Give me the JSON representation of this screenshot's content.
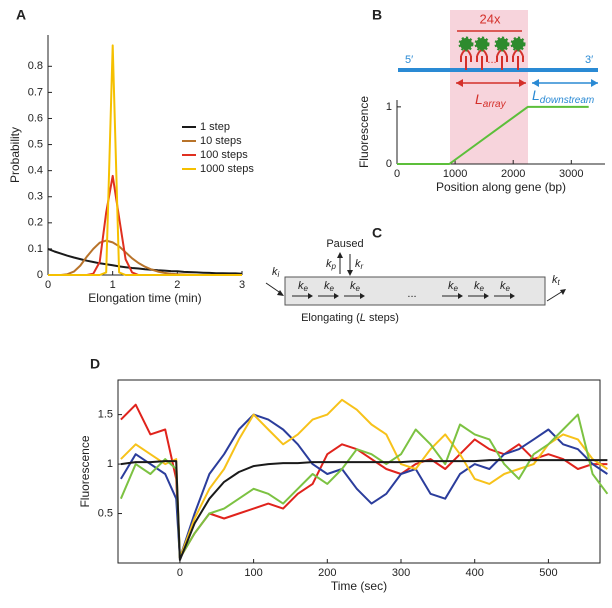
{
  "panel_labels": [
    "A",
    "B",
    "C",
    "D"
  ],
  "chart_data": [
    {
      "type": "line",
      "xlabel": "Elongation time (min)",
      "ylabel": "Probability",
      "x": [
        0,
        0.1,
        0.2,
        0.3,
        0.4,
        0.5,
        0.6,
        0.7,
        0.8,
        0.9,
        1,
        1.1,
        1.2,
        1.3,
        1.4,
        1.5,
        1.6,
        1.7,
        1.8,
        1.9,
        2,
        2.1,
        2.2,
        2.3,
        2.4,
        2.5,
        2.6,
        2.7,
        2.8,
        2.9,
        3
      ],
      "series": [
        {
          "name": "1 step",
          "color": "#1a1a1a",
          "values": [
            0.1,
            0.09,
            0.082,
            0.074,
            0.067,
            0.061,
            0.055,
            0.05,
            0.045,
            0.041,
            0.037,
            0.033,
            0.03,
            0.027,
            0.025,
            0.022,
            0.02,
            0.018,
            0.017,
            0.015,
            0.014,
            0.012,
            0.011,
            0.01,
            0.009,
            0.008,
            0.007,
            0.007,
            0.006,
            0.006,
            0.005
          ]
        },
        {
          "name": "10 steps",
          "color": "#b8732a",
          "values": [
            0,
            0,
            0,
            0.003,
            0.013,
            0.036,
            0.07,
            0.1,
            0.124,
            0.132,
            0.125,
            0.11,
            0.087,
            0.064,
            0.046,
            0.032,
            0.021,
            0.013,
            0.008,
            0.005,
            0.003,
            0.002,
            0.001,
            0,
            0,
            0,
            0,
            0,
            0,
            0,
            0
          ]
        },
        {
          "name": "100 steps",
          "color": "#e03020",
          "values": [
            0,
            0,
            0,
            0,
            0,
            0,
            0,
            0.005,
            0.05,
            0.24,
            0.38,
            0.22,
            0.06,
            0.01,
            0,
            0,
            0,
            0,
            0,
            0,
            0,
            0,
            0,
            0,
            0,
            0,
            0,
            0,
            0,
            0,
            0
          ]
        },
        {
          "name": "1000 steps",
          "color": "#f5c000",
          "values": [
            0,
            0,
            0,
            0,
            0,
            0,
            0,
            0,
            0,
            0.01,
            0.88,
            0.01,
            0,
            0,
            0,
            0,
            0,
            0,
            0,
            0,
            0,
            0,
            0,
            0,
            0,
            0,
            0,
            0,
            0,
            0,
            0
          ]
        }
      ],
      "xlim": [
        0,
        3
      ],
      "ylim": [
        0,
        0.92
      ],
      "xticks": [
        0,
        1,
        2,
        3
      ],
      "yticks": [
        0,
        0.1,
        0.2,
        0.3,
        0.4,
        0.5,
        0.6,
        0.7,
        0.8
      ],
      "legend": "center right",
      "box": false
    },
    {
      "type": "line",
      "xlabel": "Position along gene (bp)",
      "ylabel": "Fluorescence",
      "x": [
        0,
        900,
        2250,
        3300
      ],
      "series": [
        {
          "color": "#5cbf3a",
          "values": [
            0,
            0,
            1,
            1
          ]
        }
      ],
      "xlim": [
        0,
        3580
      ],
      "ylim": [
        0,
        1.12
      ],
      "xticks": [
        0,
        1000,
        2000,
        3000
      ],
      "yticks": [
        0,
        1
      ],
      "box": false
    },
    {
      "type": "line",
      "xlabel": "Time (sec)",
      "ylabel": "Fluorescence",
      "x": [
        -80,
        -60,
        -40,
        -20,
        -5,
        0,
        20,
        40,
        60,
        80,
        100,
        120,
        140,
        160,
        180,
        200,
        220,
        240,
        260,
        280,
        300,
        320,
        340,
        360,
        380,
        400,
        420,
        440,
        460,
        480,
        500,
        520,
        540,
        560,
        580
      ],
      "series": [
        {
          "color": "#e0231c",
          "values": [
            1.45,
            1.6,
            1.3,
            1.35,
            0.85,
            0.05,
            0.3,
            0.5,
            0.45,
            0.5,
            0.55,
            0.6,
            0.55,
            0.7,
            0.8,
            1.1,
            1.2,
            1.15,
            1.05,
            0.95,
            0.9,
            1.0,
            1.05,
            0.95,
            1.1,
            1.25,
            1.15,
            1.1,
            1.2,
            1.05,
            1.1,
            1.05,
            0.95,
            1.0,
            1.0
          ]
        },
        {
          "color": "#2b3d9c",
          "values": [
            0.85,
            1.1,
            1.0,
            0.9,
            0.65,
            0.05,
            0.5,
            0.9,
            1.1,
            1.35,
            1.5,
            1.45,
            1.35,
            1.2,
            1.0,
            0.9,
            0.95,
            0.75,
            0.6,
            0.7,
            0.9,
            0.95,
            0.7,
            0.65,
            0.9,
            1.0,
            0.95,
            1.1,
            1.15,
            1.25,
            1.35,
            1.2,
            1.15,
            1.0,
            0.9
          ]
        },
        {
          "color": "#f7c21a",
          "values": [
            1.05,
            1.2,
            1.1,
            1.0,
            1.05,
            0.05,
            0.45,
            0.75,
            0.95,
            1.25,
            1.5,
            1.35,
            1.2,
            1.3,
            1.45,
            1.5,
            1.65,
            1.55,
            1.4,
            1.3,
            1.0,
            0.95,
            1.15,
            1.3,
            1.1,
            0.85,
            0.8,
            0.9,
            0.95,
            1.0,
            1.2,
            1.3,
            1.25,
            1.05,
            0.95
          ]
        },
        {
          "color": "#7cc242",
          "values": [
            0.65,
            1.0,
            0.9,
            1.05,
            0.95,
            0.05,
            0.3,
            0.5,
            0.55,
            0.65,
            0.75,
            0.7,
            0.6,
            0.75,
            0.9,
            0.8,
            0.95,
            1.15,
            1.1,
            1.0,
            1.1,
            1.35,
            1.2,
            1.0,
            1.4,
            1.3,
            1.25,
            1.0,
            0.85,
            1.1,
            1.2,
            1.35,
            1.5,
            0.9,
            0.7
          ]
        },
        {
          "color": "#1a1a1a",
          "values": [
            1.0,
            1.02,
            1.02,
            1.03,
            1.03,
            0.03,
            0.4,
            0.65,
            0.82,
            0.92,
            0.98,
            1.0,
            1.01,
            1.01,
            1.02,
            1.02,
            1.02,
            1.02,
            1.02,
            1.02,
            1.02,
            1.03,
            1.03,
            1.03,
            1.03,
            1.03,
            1.04,
            1.04,
            1.04,
            1.04,
            1.04,
            1.04,
            1.04,
            1.04,
            1.04
          ]
        }
      ],
      "xlim": [
        -84,
        570
      ],
      "ylim": [
        0,
        1.85
      ],
      "xticks": [
        0,
        100,
        200,
        300,
        400,
        500
      ],
      "yticks": [
        0.5,
        1,
        1.5
      ],
      "box": true
    }
  ],
  "diagram_b": {
    "array_label": "24x",
    "five_prime": "5′",
    "three_prime": "3′",
    "ellipsis": "...",
    "l_array": {
      "base": "L",
      "sub": "array"
    },
    "l_downstream": {
      "base": "L",
      "sub": "downstream"
    }
  },
  "diagram_c": {
    "paused": "Paused",
    "k_p": {
      "base": "k",
      "sub": "p"
    },
    "k_r": {
      "base": "k",
      "sub": "r"
    },
    "k_i": {
      "base": "k",
      "sub": "i"
    },
    "k_t": {
      "base": "k",
      "sub": "t"
    },
    "steps": [
      {
        "base": "k",
        "sub": "e"
      },
      {
        "base": "k",
        "sub": "e"
      },
      {
        "base": "k",
        "sub": "e"
      },
      {
        "base": "k",
        "sub": "e"
      },
      {
        "base": "k",
        "sub": "e"
      },
      {
        "base": "k",
        "sub": "e"
      }
    ],
    "ellipsis": "...",
    "elongating": {
      "text": "Elongating (",
      "italic": "L",
      "rest": " steps)"
    }
  }
}
